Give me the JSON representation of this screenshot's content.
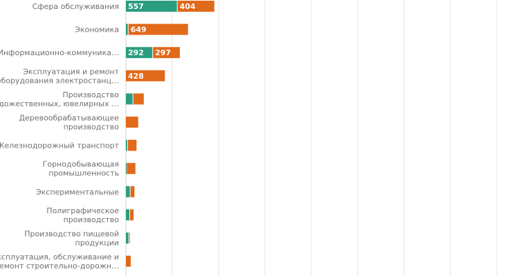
{
  "chart_data": {
    "type": "bar",
    "orientation": "horizontal",
    "stacked": true,
    "grid": true,
    "xlim": [
      0,
      4000
    ],
    "categories": [
      [
        "Сфера обслуживания"
      ],
      [
        "Экономика"
      ],
      [
        "Информационно-коммуника…"
      ],
      [
        "Эксплуатация и ремонт",
        "оборудования электростанц…"
      ],
      [
        "Производство",
        "художественных, ювелирных …"
      ],
      [
        "Деревообрабатывающее",
        "производство"
      ],
      [
        "Железнодорожный транспорт"
      ],
      [
        "Горнодобывающая",
        "промышленность"
      ],
      [
        "Экспериментальные"
      ],
      [
        "Полиграфическое",
        "производство"
      ],
      [
        "Производство пищевой",
        "продукции"
      ],
      [
        "Эксплуатация, обслуживание и",
        "ремонт строительно-дорожн…"
      ]
    ],
    "series": [
      {
        "color": "#2a9d7f",
        "values": [
          557,
          28,
          292,
          0,
          80,
          0,
          22,
          10,
          50,
          45,
          35,
          0
        ],
        "labels": [
          "557",
          "",
          "292",
          "",
          "",
          "",
          "",
          "",
          "",
          "",
          "",
          ""
        ]
      },
      {
        "color": "#e0691a",
        "values": [
          404,
          649,
          297,
          428,
          120,
          140,
          100,
          100,
          50,
          45,
          15,
          60
        ],
        "labels": [
          "404",
          "649",
          "297",
          "428",
          "",
          "",
          "",
          "",
          "",
          "",
          "",
          ""
        ]
      }
    ]
  }
}
